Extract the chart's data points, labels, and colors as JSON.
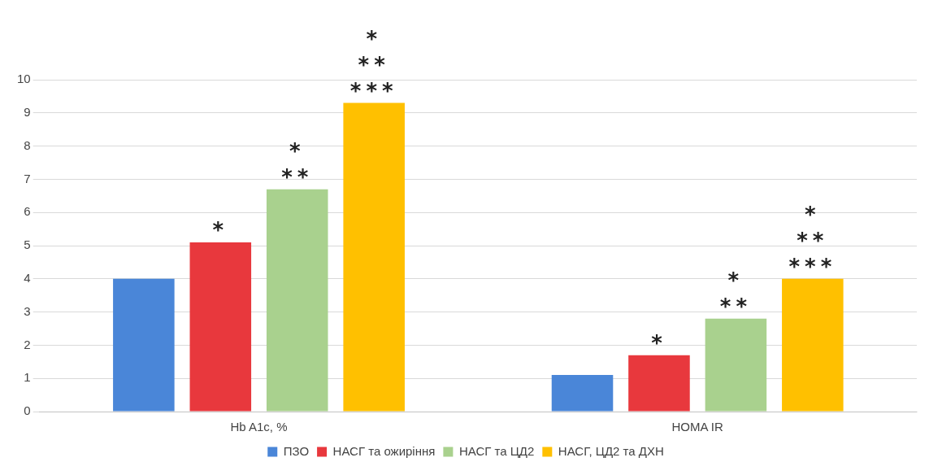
{
  "chart_data": {
    "type": "bar",
    "categories": [
      "Hb A1c, %",
      "HOMA IR"
    ],
    "series": [
      {
        "name": "ПЗО",
        "color": "#4a86d8",
        "values": [
          4.0,
          1.1
        ]
      },
      {
        "name": "НАСГ та ожиріння",
        "color": "#e8383d",
        "values": [
          5.1,
          1.7
        ],
        "value_labels": [
          "*",
          "*"
        ]
      },
      {
        "name": "НАСГ та ЦД2",
        "color": "#a9d18e",
        "values": [
          6.7,
          2.8
        ],
        "value_labels": [
          "*\n**",
          "*\n**"
        ]
      },
      {
        "name": "НАСГ, ЦД2 та ДХН",
        "color": "#ffc000",
        "values": [
          9.3,
          4.0
        ],
        "value_labels": [
          "*\n**\n***",
          "*\n**\n***"
        ]
      }
    ],
    "ylim": [
      0,
      10
    ],
    "yticks": [
      0,
      1,
      2,
      3,
      4,
      5,
      6,
      7,
      8,
      9,
      10
    ],
    "grid": "y",
    "legend": "bottom"
  }
}
